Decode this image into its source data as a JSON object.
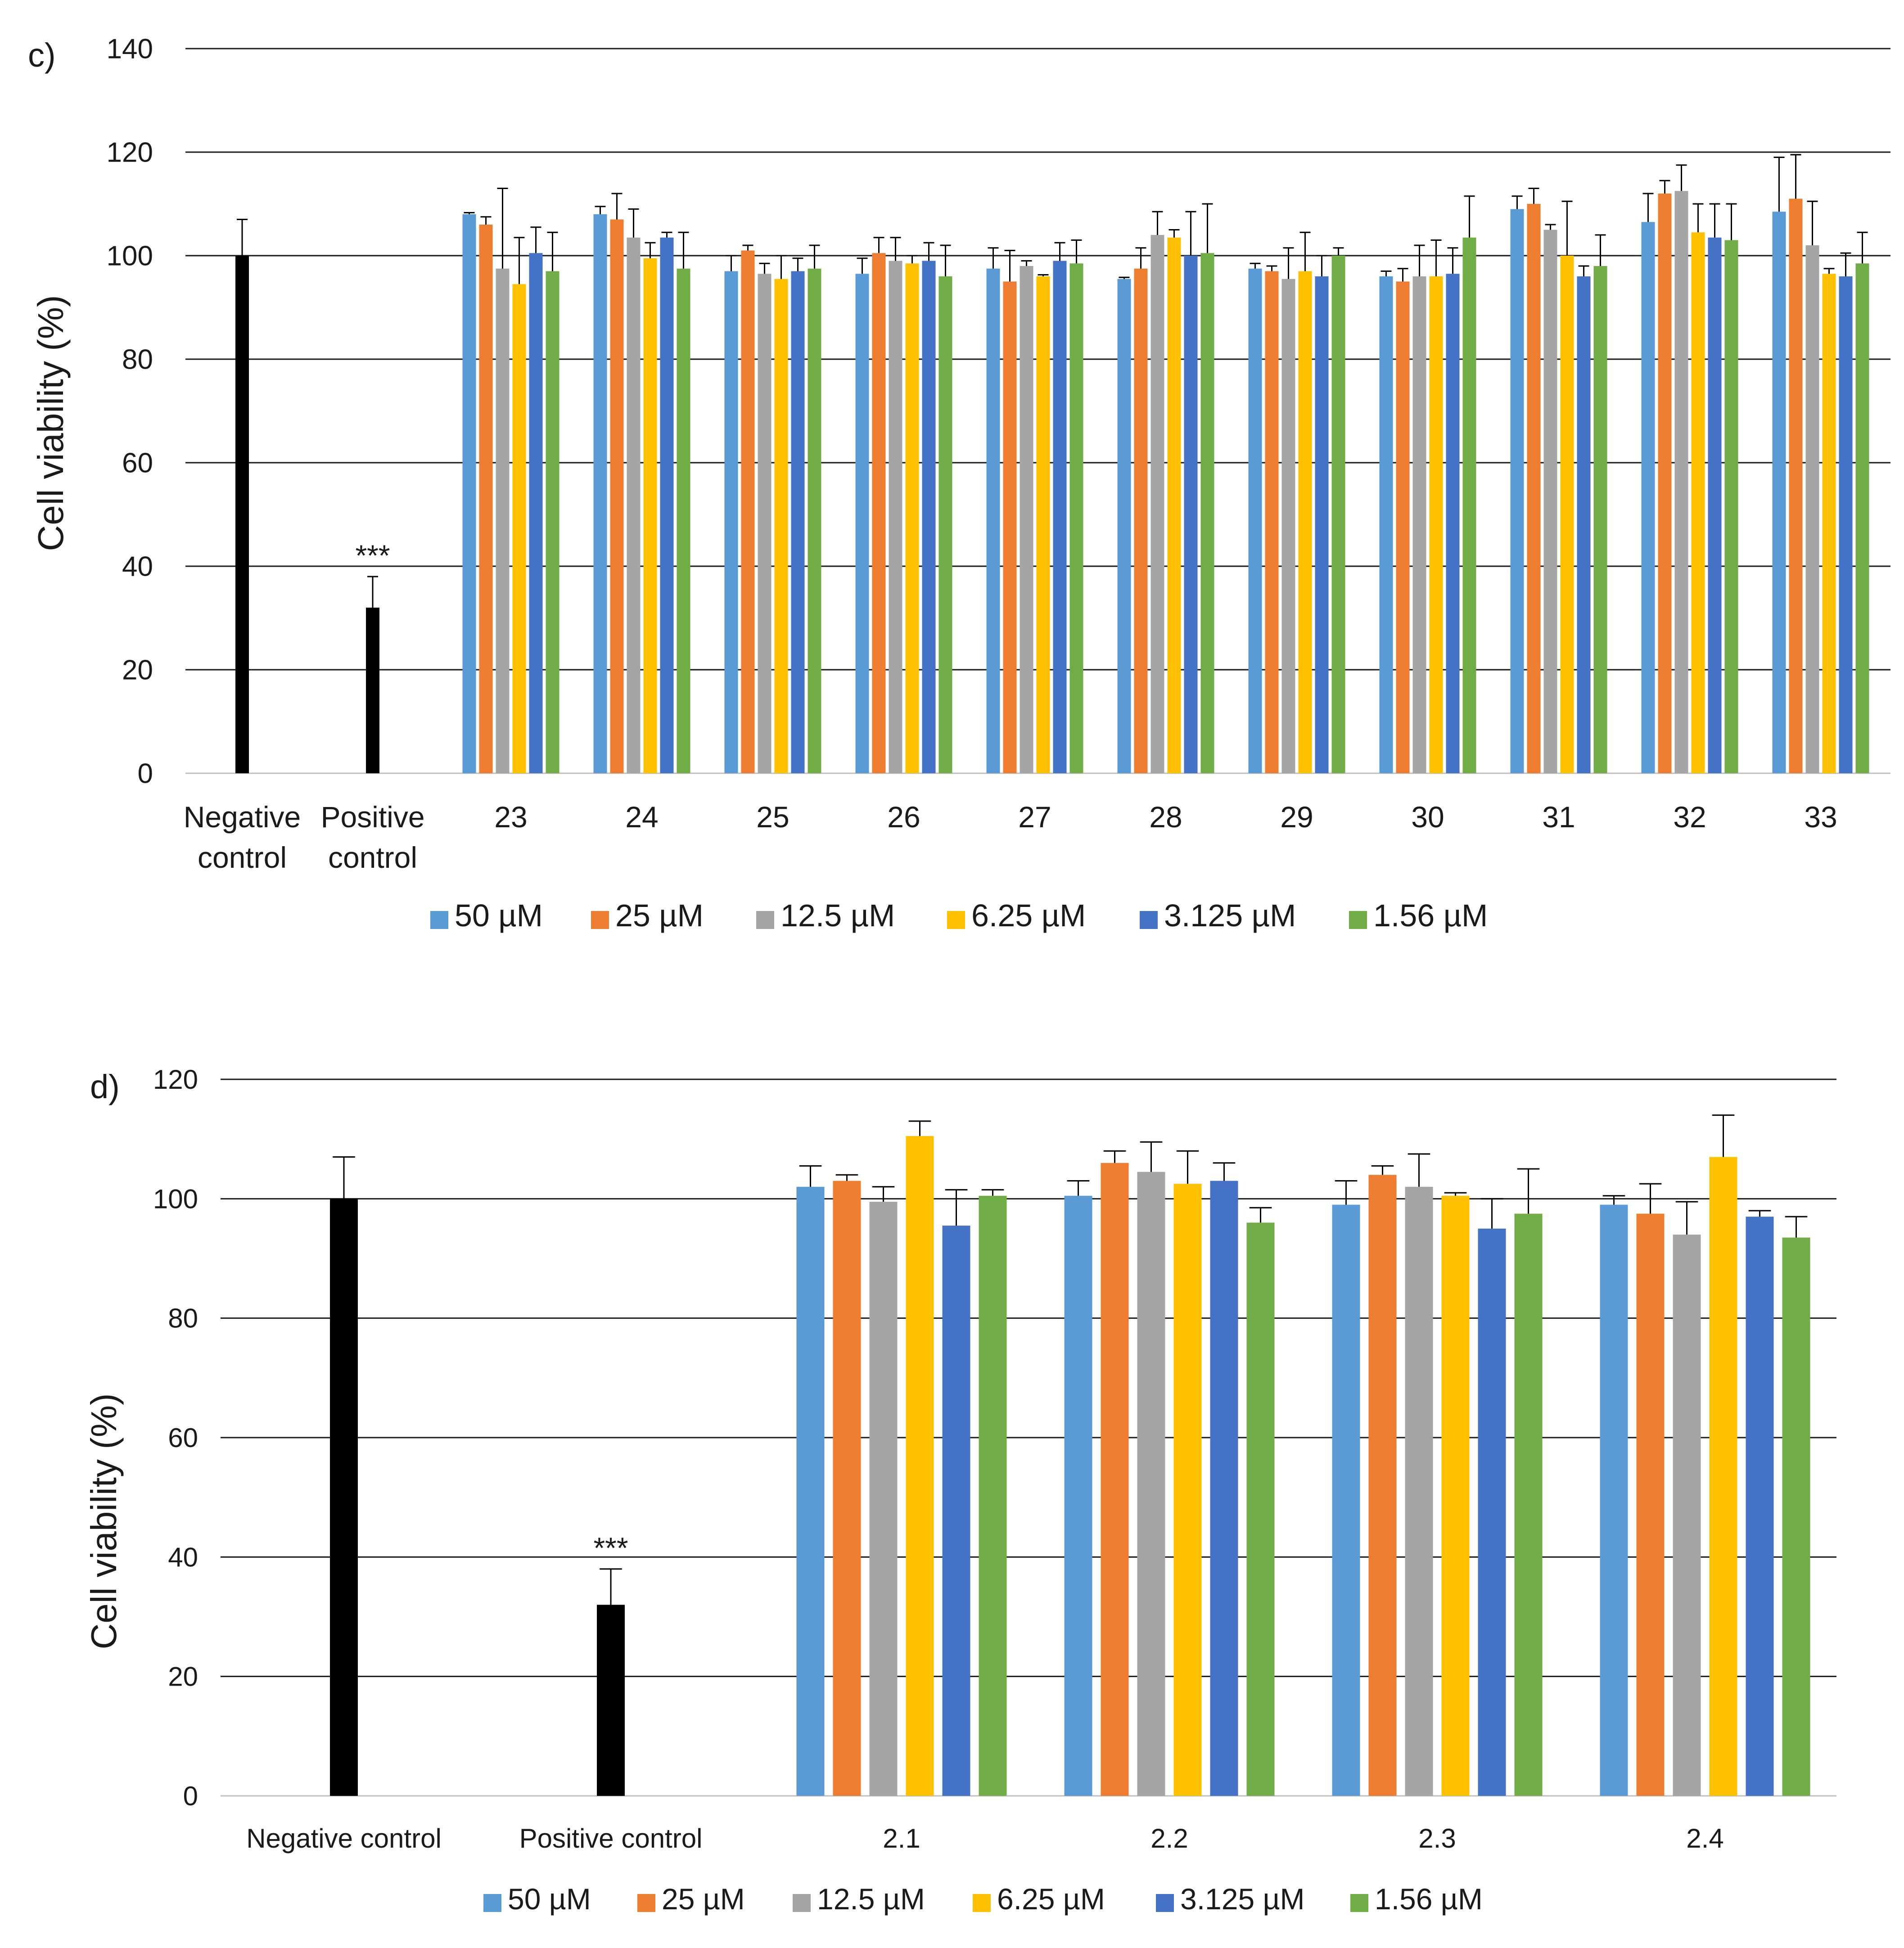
{
  "chart_data": [
    {
      "panel_label": "c)",
      "type": "bar",
      "ylabel": "Cell viability (%)",
      "ylim": [
        0,
        140
      ],
      "yticks": [
        0,
        20,
        40,
        60,
        80,
        100,
        120,
        140
      ],
      "grid": true,
      "legend_position": "bottom-center",
      "controls": [
        {
          "label": "Negative control",
          "lines": [
            "Negative",
            "control"
          ],
          "value": 100,
          "error": 7,
          "annotation": ""
        },
        {
          "label": "Positive control",
          "lines": [
            "Positive",
            "control"
          ],
          "value": 32,
          "error": 6,
          "annotation": "***"
        }
      ],
      "categories": [
        "23",
        "24",
        "25",
        "26",
        "27",
        "28",
        "29",
        "30",
        "31",
        "32",
        "33"
      ],
      "series": [
        {
          "name": "50 µM",
          "color": "#5B9BD5",
          "values": [
            108,
            108,
            97,
            96.5,
            97.5,
            95.5,
            97.5,
            96,
            109,
            106.5,
            108.5
          ],
          "errors": [
            0.3,
            1.5,
            3,
            3,
            4,
            0.3,
            1,
            1,
            2.5,
            5.5,
            10.5
          ]
        },
        {
          "name": "25 µM",
          "color": "#ED7D31",
          "values": [
            106,
            107,
            101,
            100.5,
            95,
            97.5,
            97,
            95,
            110,
            112,
            111
          ],
          "errors": [
            1.5,
            5,
            1,
            3,
            6,
            4,
            1,
            2.5,
            3,
            2.5,
            8.5
          ]
        },
        {
          "name": "12.5 µM",
          "color": "#A5A5A5",
          "values": [
            97.5,
            103.5,
            96.5,
            99,
            98,
            104,
            95.5,
            96,
            105,
            112.5,
            102
          ],
          "errors": [
            15.5,
            5.5,
            2,
            4.5,
            1,
            4.5,
            6,
            6,
            1,
            5,
            8.5
          ]
        },
        {
          "name": "6.25 µM",
          "color": "#FFC000",
          "values": [
            94.5,
            99.5,
            95.5,
            98.5,
            96,
            103.5,
            97,
            96,
            100,
            104.5,
            96.5
          ],
          "errors": [
            9,
            3,
            4.5,
            1.5,
            0.3,
            1.5,
            7.5,
            7,
            10.5,
            5.5,
            1
          ]
        },
        {
          "name": "3.125 µM",
          "color": "#4472C4",
          "values": [
            100.5,
            103.5,
            97,
            99,
            99,
            100,
            96,
            96.5,
            96,
            103.5,
            96
          ],
          "errors": [
            5,
            1,
            2.5,
            3.5,
            3.5,
            8.5,
            4,
            5,
            2,
            6.5,
            4.5
          ]
        },
        {
          "name": "1.56 µM",
          "color": "#70AD47",
          "values": [
            97,
            97.5,
            97.5,
            96,
            98.5,
            100.5,
            100,
            103.5,
            98,
            103,
            98.5
          ],
          "errors": [
            7.5,
            7,
            4.5,
            6,
            4.5,
            9.5,
            1.5,
            8,
            6,
            7,
            6
          ]
        }
      ]
    },
    {
      "panel_label": "d)",
      "type": "bar",
      "ylabel": "Cell viability (%)",
      "ylim": [
        0,
        120
      ],
      "yticks": [
        0,
        20,
        40,
        60,
        80,
        100,
        120
      ],
      "grid": true,
      "legend_position": "bottom-center",
      "controls": [
        {
          "label": "Negative control",
          "lines": [
            "Negative control"
          ],
          "value": 100,
          "error": 7,
          "annotation": ""
        },
        {
          "label": "Positive control",
          "lines": [
            "Positive control"
          ],
          "value": 32,
          "error": 6,
          "annotation": "***"
        }
      ],
      "categories": [
        "2.1",
        "2.2",
        "2.3",
        "2.4"
      ],
      "series": [
        {
          "name": "50 µM",
          "color": "#5B9BD5",
          "values": [
            102,
            100.5,
            99,
            99
          ],
          "errors": [
            3.5,
            2.5,
            4,
            1.5
          ]
        },
        {
          "name": "25 µM",
          "color": "#ED7D31",
          "values": [
            103,
            106,
            104,
            97.5
          ],
          "errors": [
            1,
            2,
            1.5,
            5
          ]
        },
        {
          "name": "12.5 µM",
          "color": "#A5A5A5",
          "values": [
            99.5,
            104.5,
            102,
            94
          ],
          "errors": [
            2.5,
            5,
            5.5,
            5.5
          ]
        },
        {
          "name": "6.25 µM",
          "color": "#FFC000",
          "values": [
            110.5,
            102.5,
            100.5,
            107
          ],
          "errors": [
            2.5,
            5.5,
            0.5,
            7
          ]
        },
        {
          "name": "3.125 µM",
          "color": "#4472C4",
          "values": [
            95.5,
            103,
            95,
            97
          ],
          "errors": [
            6,
            3,
            5,
            1
          ]
        },
        {
          "name": "1.56 µM",
          "color": "#70AD47",
          "values": [
            100.5,
            96,
            97.5,
            93.5
          ],
          "errors": [
            1,
            2.5,
            7.5,
            3.5
          ]
        }
      ]
    }
  ]
}
